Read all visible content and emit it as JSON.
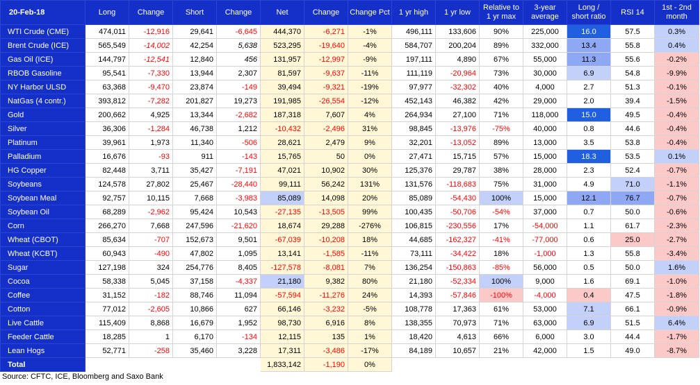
{
  "chart_data": {
    "type": "table",
    "columns": [
      "20-Feb-18",
      "Long",
      "Change",
      "Short",
      "Change",
      "Net",
      "Change",
      "Change Pct",
      "1 yr high",
      "1 yr low",
      "Relative to 1 yr max",
      "3-year average",
      "Long / short ratio",
      "RSI 14",
      "1st - 2nd month"
    ],
    "rows": [
      {
        "name": "WTI Crude (CME)",
        "group_first": true,
        "cells": [
          "474,011",
          "-12,916",
          "29,641",
          "-6,645",
          "444,370",
          "-6,271",
          "-1%",
          "496,111",
          "133,606",
          "90%",
          "225,000",
          "16.0",
          "57.5",
          "0.3%"
        ],
        "hl": {
          "11": "blue-strong",
          "13": "blue-light"
        }
      },
      {
        "name": "Brent Crude (ICE)",
        "cells": [
          "565,549",
          "-14,002",
          "42,254",
          "5,638",
          "523,295",
          "-19,640",
          "-4%",
          "584,707",
          "200,204",
          "89%",
          "332,000",
          "13.4",
          "55.8",
          "0.4%"
        ],
        "ital": [
          1,
          3
        ],
        "hl": {
          "11": "blue-mid",
          "13": "blue-light"
        }
      },
      {
        "name": "Gas Oil (ICE)",
        "cells": [
          "144,797",
          "-12,541",
          "12,840",
          "456",
          "131,957",
          "-12,997",
          "-9%",
          "197,111",
          "4,890",
          "67%",
          "55,000",
          "11.3",
          "55.6",
          "-0.2%"
        ],
        "ital": [
          1,
          3
        ],
        "hl": {
          "11": "blue-mid",
          "13": "red-light"
        }
      },
      {
        "name": "RBOB Gasoline",
        "cells": [
          "95,541",
          "-7,330",
          "13,944",
          "2,307",
          "81,597",
          "-9,637",
          "-11%",
          "111,119",
          "-20,964",
          "73%",
          "30,000",
          "6.9",
          "54.8",
          "-9.9%"
        ],
        "hl": {
          "11": "blue-light",
          "13": "red-light"
        }
      },
      {
        "name": "NY Harbor ULSD",
        "cells": [
          "63,368",
          "-9,470",
          "23,874",
          "-149",
          "39,494",
          "-9,321",
          "-19%",
          "97,977",
          "-32,302",
          "40%",
          "4,000",
          "2.7",
          "51.3",
          "-0.1%"
        ],
        "hl": {
          "13": "red-light"
        }
      },
      {
        "name": "NatGas (4 contr.)",
        "cells": [
          "393,812",
          "-7,282",
          "201,827",
          "19,273",
          "191,985",
          "-26,554",
          "-12%",
          "452,143",
          "46,382",
          "42%",
          "29,000",
          "2.0",
          "39.4",
          "-1.5%"
        ],
        "hl": {
          "13": "red-light"
        }
      },
      {
        "name": "Gold",
        "group_first": true,
        "cells": [
          "200,662",
          "4,925",
          "13,344",
          "-2,682",
          "187,318",
          "7,607",
          "4%",
          "264,934",
          "27,100",
          "71%",
          "118,000",
          "15.0",
          "49.5",
          "-0.4%"
        ],
        "hl": {
          "11": "blue-strong",
          "13": "red-light"
        }
      },
      {
        "name": "Silver",
        "cells": [
          "36,306",
          "-1,284",
          "46,738",
          "1,212",
          "-10,432",
          "-2,496",
          "31%",
          "98,845",
          "-13,976",
          "-75%",
          "40,000",
          "0.8",
          "44.6",
          "-0.4%"
        ],
        "hl": {
          "13": "red-light"
        }
      },
      {
        "name": "Platinum",
        "cells": [
          "39,961",
          "1,973",
          "11,340",
          "-506",
          "28,621",
          "2,479",
          "9%",
          "32,201",
          "-13,052",
          "89%",
          "13,000",
          "3.5",
          "53.8",
          "-0.4%"
        ],
        "hl": {
          "13": "red-light"
        }
      },
      {
        "name": "Palladium",
        "cells": [
          "16,676",
          "-93",
          "911",
          "-143",
          "15,765",
          "50",
          "0%",
          "27,471",
          "15,715",
          "57%",
          "15,000",
          "18.3",
          "53.5",
          "0.1%"
        ],
        "hl": {
          "11": "blue-strong",
          "13": "blue-light"
        }
      },
      {
        "name": "HG Copper",
        "cells": [
          "82,448",
          "3,711",
          "35,427",
          "-7,191",
          "47,021",
          "10,902",
          "30%",
          "125,376",
          "29,787",
          "38%",
          "28,000",
          "2.3",
          "52.4",
          "-0.7%"
        ],
        "hl": {
          "13": "red-light"
        }
      },
      {
        "name": "Soybeans",
        "group_first": true,
        "cells": [
          "124,578",
          "27,802",
          "25,467",
          "-28,440",
          "99,111",
          "56,242",
          "131%",
          "131,576",
          "-118,683",
          "75%",
          "31,000",
          "4.9",
          "71.0",
          "-1.1%"
        ],
        "hl": {
          "12": "blue-light",
          "13": "red-light"
        }
      },
      {
        "name": "Soybean Meal",
        "cells": [
          "92,757",
          "10,115",
          "7,668",
          "-3,983",
          "85,089",
          "14,098",
          "20%",
          "85,089",
          "-54,430",
          "100%",
          "15,000",
          "12.1",
          "76.7",
          "-0.7%"
        ],
        "hl": {
          "4": "blue-light",
          "9": "blue-light",
          "11": "blue-mid",
          "12": "blue-mid",
          "13": "red-light"
        }
      },
      {
        "name": "Soybean Oil",
        "cells": [
          "68,289",
          "-2,962",
          "95,424",
          "10,543",
          "-27,135",
          "-13,505",
          "99%",
          "100,435",
          "-50,706",
          "-54%",
          "37,000",
          "0.7",
          "50.0",
          "-0.6%"
        ],
        "hl": {
          "13": "red-light"
        }
      },
      {
        "name": "Corn",
        "cells": [
          "266,270",
          "7,668",
          "247,596",
          "-21,620",
          "18,674",
          "29,288",
          "-276%",
          "106,815",
          "-230,556",
          "17%",
          "-54,000",
          "1.1",
          "61.7",
          "-2.3%"
        ],
        "hl": {
          "13": "red-light"
        }
      },
      {
        "name": "Wheat (CBOT)",
        "cells": [
          "85,634",
          "-707",
          "152,673",
          "9,501",
          "-67,039",
          "-10,208",
          "18%",
          "44,685",
          "-162,327",
          "-41%",
          "-77,000",
          "0.6",
          "25.0",
          "-2.7%"
        ],
        "hl": {
          "12": "red-light",
          "13": "red-light"
        }
      },
      {
        "name": "Wheat (KCBT)",
        "cells": [
          "60,943",
          "-490",
          "47,802",
          "1,095",
          "13,141",
          "-1,585",
          "-11%",
          "73,111",
          "-34,422",
          "18%",
          "-1,000",
          "1.3",
          "55.8",
          "-3.4%"
        ],
        "hl": {
          "13": "red-light"
        }
      },
      {
        "name": "Sugar",
        "group_first": true,
        "cells": [
          "127,198",
          "324",
          "254,776",
          "8,405",
          "-127,578",
          "-8,081",
          "7%",
          "136,254",
          "-150,863",
          "-85%",
          "56,000",
          "0.5",
          "50.0",
          "1.6%"
        ],
        "hl": {
          "13": "blue-light"
        }
      },
      {
        "name": "Cocoa",
        "cells": [
          "58,338",
          "5,045",
          "37,158",
          "-4,337",
          "21,180",
          "9,382",
          "80%",
          "21,180",
          "-52,334",
          "100%",
          "9,000",
          "1.6",
          "69.1",
          "-1.0%"
        ],
        "hl": {
          "4": "blue-light",
          "9": "blue-light",
          "13": "red-light"
        }
      },
      {
        "name": "Coffee",
        "cells": [
          "31,152",
          "-182",
          "88,746",
          "11,094",
          "-57,594",
          "-11,276",
          "24%",
          "14,393",
          "-57,846",
          "-100%",
          "-4,000",
          "0.4",
          "47.5",
          "-1.8%"
        ],
        "hl": {
          "9": "red-light",
          "11": "red-light",
          "13": "red-light"
        }
      },
      {
        "name": "Cotton",
        "cells": [
          "77,012",
          "-2,605",
          "10,866",
          "627",
          "66,146",
          "-3,232",
          "-5%",
          "108,778",
          "17,363",
          "61%",
          "53,000",
          "7.1",
          "66.1",
          "-0.9%"
        ],
        "hl": {
          "11": "blue-light",
          "13": "red-light"
        }
      },
      {
        "name": "Live Cattle",
        "group_first": true,
        "cells": [
          "115,409",
          "8,868",
          "16,679",
          "1,952",
          "98,730",
          "6,916",
          "8%",
          "138,355",
          "70,973",
          "71%",
          "63,000",
          "6.9",
          "51.5",
          "6.4%"
        ],
        "hl": {
          "11": "blue-light",
          "13": "blue-light"
        }
      },
      {
        "name": "Feeder Cattle",
        "cells": [
          "18,285",
          "1",
          "6,170",
          "-134",
          "12,115",
          "135",
          "1%",
          "18,420",
          "4,613",
          "66%",
          "6,000",
          "3.0",
          "44.4",
          "-1.7%"
        ],
        "hl": {
          "13": "red-light"
        }
      },
      {
        "name": "Lean Hogs",
        "cells": [
          "52,771",
          "-258",
          "35,460",
          "3,228",
          "17,311",
          "-3,486",
          "-17%",
          "84,189",
          "10,657",
          "21%",
          "42,000",
          "1.5",
          "49.0",
          "-8.7%"
        ],
        "hl": {
          "13": "red-light"
        }
      }
    ],
    "total": {
      "name": "Total",
      "net": "1,833,142",
      "change": "-1,190",
      "change_pct": "0%"
    }
  },
  "source": "Source: CFTC, ICE, Bloomberg and Saxo Bank"
}
